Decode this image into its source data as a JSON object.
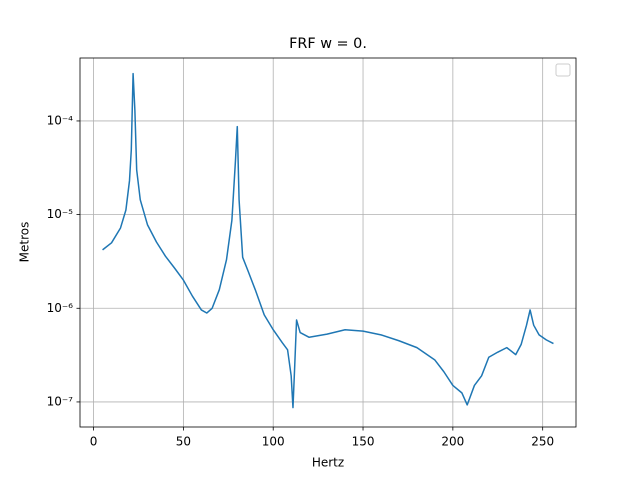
{
  "chart_data": {
    "type": "line",
    "title": "FRF w = 0.",
    "x_label": "Hertz",
    "y_label": "Metros",
    "log_y": true,
    "grid": true,
    "legend": "upper right",
    "xlim": [
      -7.55,
      268.55
    ],
    "xticks": [
      0,
      50,
      100,
      150,
      200,
      250
    ],
    "ylim": [
      5.4e-08,
      0.00047
    ],
    "yticks": [
      {
        "value": 1e-07,
        "label": "10⁻⁷"
      },
      {
        "value": 1e-06,
        "label": "10⁻⁶"
      },
      {
        "value": 1e-05,
        "label": "10⁻⁵"
      },
      {
        "value": 0.0001,
        "label": "10⁻⁴"
      }
    ],
    "series": [
      {
        "color": "#1f77b4",
        "x": [
          5,
          10,
          15,
          18,
          20,
          21,
          22,
          23,
          24,
          26,
          30,
          35,
          40,
          45,
          50,
          55,
          60,
          63,
          66,
          70,
          74,
          77,
          79,
          80,
          81,
          83,
          86,
          90,
          95,
          100,
          105,
          108,
          110,
          111,
          112,
          113,
          115,
          120,
          130,
          140,
          150,
          160,
          170,
          180,
          190,
          195,
          200,
          205,
          208,
          212,
          216,
          220,
          225,
          230,
          235,
          238,
          241,
          243,
          245,
          248,
          252,
          256
        ],
        "values": [
          4.2e-06,
          5e-06,
          7.2e-06,
          1.12e-05,
          2.3e-05,
          4.9e-05,
          0.00032,
          0.00013,
          3e-05,
          1.44e-05,
          7.8e-06,
          5.1e-06,
          3.6e-06,
          2.7e-06,
          2e-06,
          1.35e-06,
          9.6e-07,
          8.9e-07,
          1e-06,
          1.58e-06,
          3.3e-06,
          8.7e-06,
          3.8e-05,
          8.7e-05,
          1.44e-05,
          3.5e-06,
          2.5e-06,
          1.58e-06,
          8.5e-07,
          5.9e-07,
          4.3e-07,
          3.6e-07,
          1.9e-07,
          8.7e-08,
          2.5e-07,
          7.5e-07,
          5.5e-07,
          4.9e-07,
          5.3e-07,
          5.9e-07,
          5.7e-07,
          5.2e-07,
          4.5e-07,
          3.8e-07,
          2.8e-07,
          2.1e-07,
          1.5e-07,
          1.25e-07,
          9.3e-08,
          1.5e-07,
          1.9e-07,
          3e-07,
          3.4e-07,
          3.8e-07,
          3.2e-07,
          4.1e-07,
          6.6e-07,
          9.6e-07,
          6.6e-07,
          5.2e-07,
          4.6e-07,
          4.2e-07
        ]
      }
    ]
  }
}
